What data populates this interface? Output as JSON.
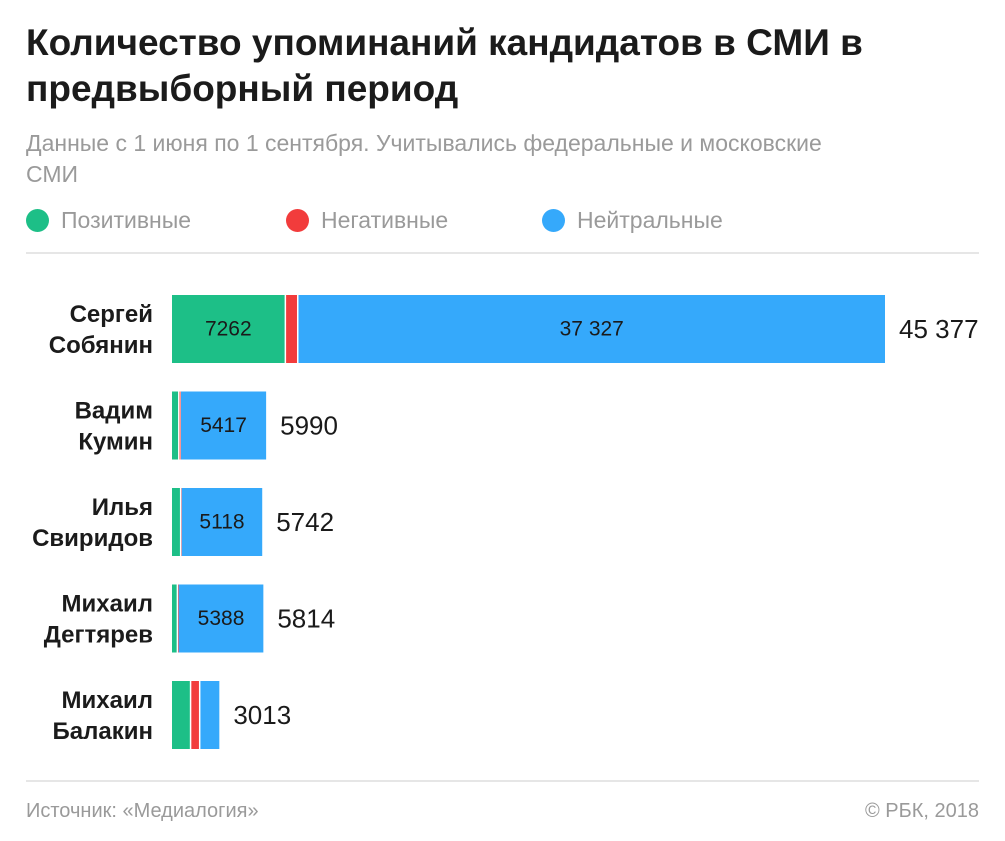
{
  "title": "Количество упоминаний кандидатов в СМИ в предвыборный период",
  "subtitle": "Данные с 1 июня по 1 сентября. Учитывались федеральные и московские СМИ",
  "legend": [
    {
      "label": "Позитивные",
      "color": "#1dbf87"
    },
    {
      "label": "Негативные",
      "color": "#f23c3c"
    },
    {
      "label": "Нейтральные",
      "color": "#35a9fb"
    }
  ],
  "footer": {
    "source": "Источник: «Медиалогия»",
    "copyright": "© РБК, 2018"
  },
  "chart_data": {
    "type": "bar",
    "orientation": "horizontal",
    "stacked": true,
    "categories": [
      "Сергей Собянин",
      "Вадим Кумин",
      "Илья Свиридов",
      "Михаил Дегтярев",
      "Михаил Балакин"
    ],
    "category_lines": [
      [
        "Сергей",
        "Собянин"
      ],
      [
        "Вадим",
        "Кумин"
      ],
      [
        "Илья",
        "Свиридов"
      ],
      [
        "Михаил",
        "Дегтярев"
      ],
      [
        "Михаил",
        "Балакин"
      ]
    ],
    "series": [
      {
        "name": "Позитивные",
        "color": "#1dbf87",
        "values": [
          7262,
          480,
          600,
          390,
          1230
        ]
      },
      {
        "name": "Негативные",
        "color": "#f23c3c",
        "values": [
          788,
          93,
          24,
          36,
          580
        ]
      },
      {
        "name": "Нейтральные",
        "color": "#35a9fb",
        "values": [
          37327,
          5417,
          5118,
          5388,
          1203
        ]
      }
    ],
    "segment_labels": [
      [
        "7262",
        "",
        "37 327"
      ],
      [
        "",
        "",
        "5417"
      ],
      [
        "",
        "",
        "5118"
      ],
      [
        "",
        "",
        "5388"
      ],
      [
        "",
        "",
        ""
      ]
    ],
    "totals": [
      45377,
      5990,
      5742,
      5814,
      3013
    ],
    "total_labels": [
      "45 377",
      "5990",
      "5742",
      "5814",
      "3013"
    ],
    "xlim": [
      0,
      45377
    ]
  }
}
